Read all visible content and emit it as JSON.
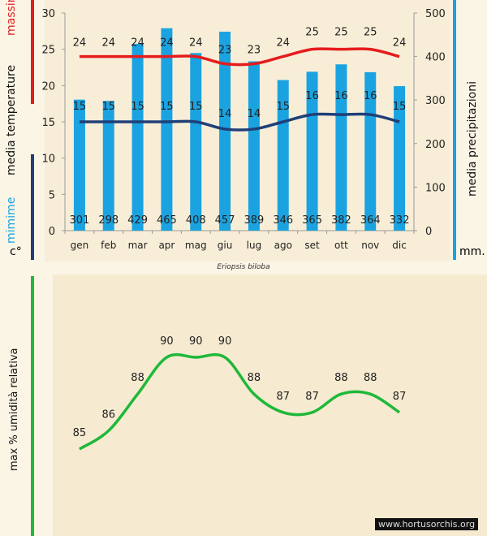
{
  "chart_data": [
    {
      "type": "bar+line",
      "title": "Eriopsis biloba",
      "categories": [
        "gen",
        "feb",
        "mar",
        "apr",
        "mag",
        "giu",
        "lug",
        "ago",
        "set",
        "ott",
        "nov",
        "dic"
      ],
      "series": [
        {
          "name": "media precipitazioni",
          "type": "bar",
          "axis": "right",
          "values": [
            301,
            298,
            429,
            465,
            408,
            457,
            389,
            346,
            365,
            382,
            364,
            332
          ]
        },
        {
          "name": "massime",
          "type": "line",
          "axis": "left",
          "values": [
            24,
            24,
            24,
            24,
            24,
            23,
            23,
            24,
            25,
            25,
            25,
            24
          ]
        },
        {
          "name": "mimime",
          "type": "line",
          "axis": "left",
          "values": [
            15,
            15,
            15,
            15,
            15,
            14,
            14,
            15,
            16,
            16,
            16,
            15
          ]
        }
      ],
      "left_axis": {
        "ylim": [
          0,
          30
        ],
        "ticks": [
          0,
          5,
          10,
          15,
          20,
          25,
          30
        ]
      },
      "right_axis": {
        "ylim": [
          0,
          500
        ],
        "ticks": [
          0,
          100,
          200,
          300,
          400,
          500
        ]
      },
      "labels": {
        "massime": "massime",
        "media_temp": "media  temperature",
        "mimime": "mimime",
        "c_unit": "c°",
        "precip": "media  precipitazioni",
        "mm_unit": "mm."
      },
      "colors": {
        "bar": "#1aa3e0",
        "max": "#e51c1c",
        "min": "#1f3f78",
        "precip_rule": "#1aa3e0"
      }
    },
    {
      "type": "line",
      "categories": [
        "gen",
        "feb",
        "mar",
        "apr",
        "mag",
        "giu",
        "lug",
        "ago",
        "set",
        "ott",
        "nov",
        "dic"
      ],
      "series": [
        {
          "name": "max % umidità relativa",
          "values": [
            85,
            86,
            88,
            90,
            90,
            90,
            88,
            87,
            87,
            88,
            88,
            87
          ]
        }
      ],
      "ylabel": "max  %  umidità relativa",
      "colors": {
        "line": "#1fb83a"
      }
    }
  ],
  "caption": "Eriopsis biloba",
  "watermark": "www.hortusorchis.org"
}
